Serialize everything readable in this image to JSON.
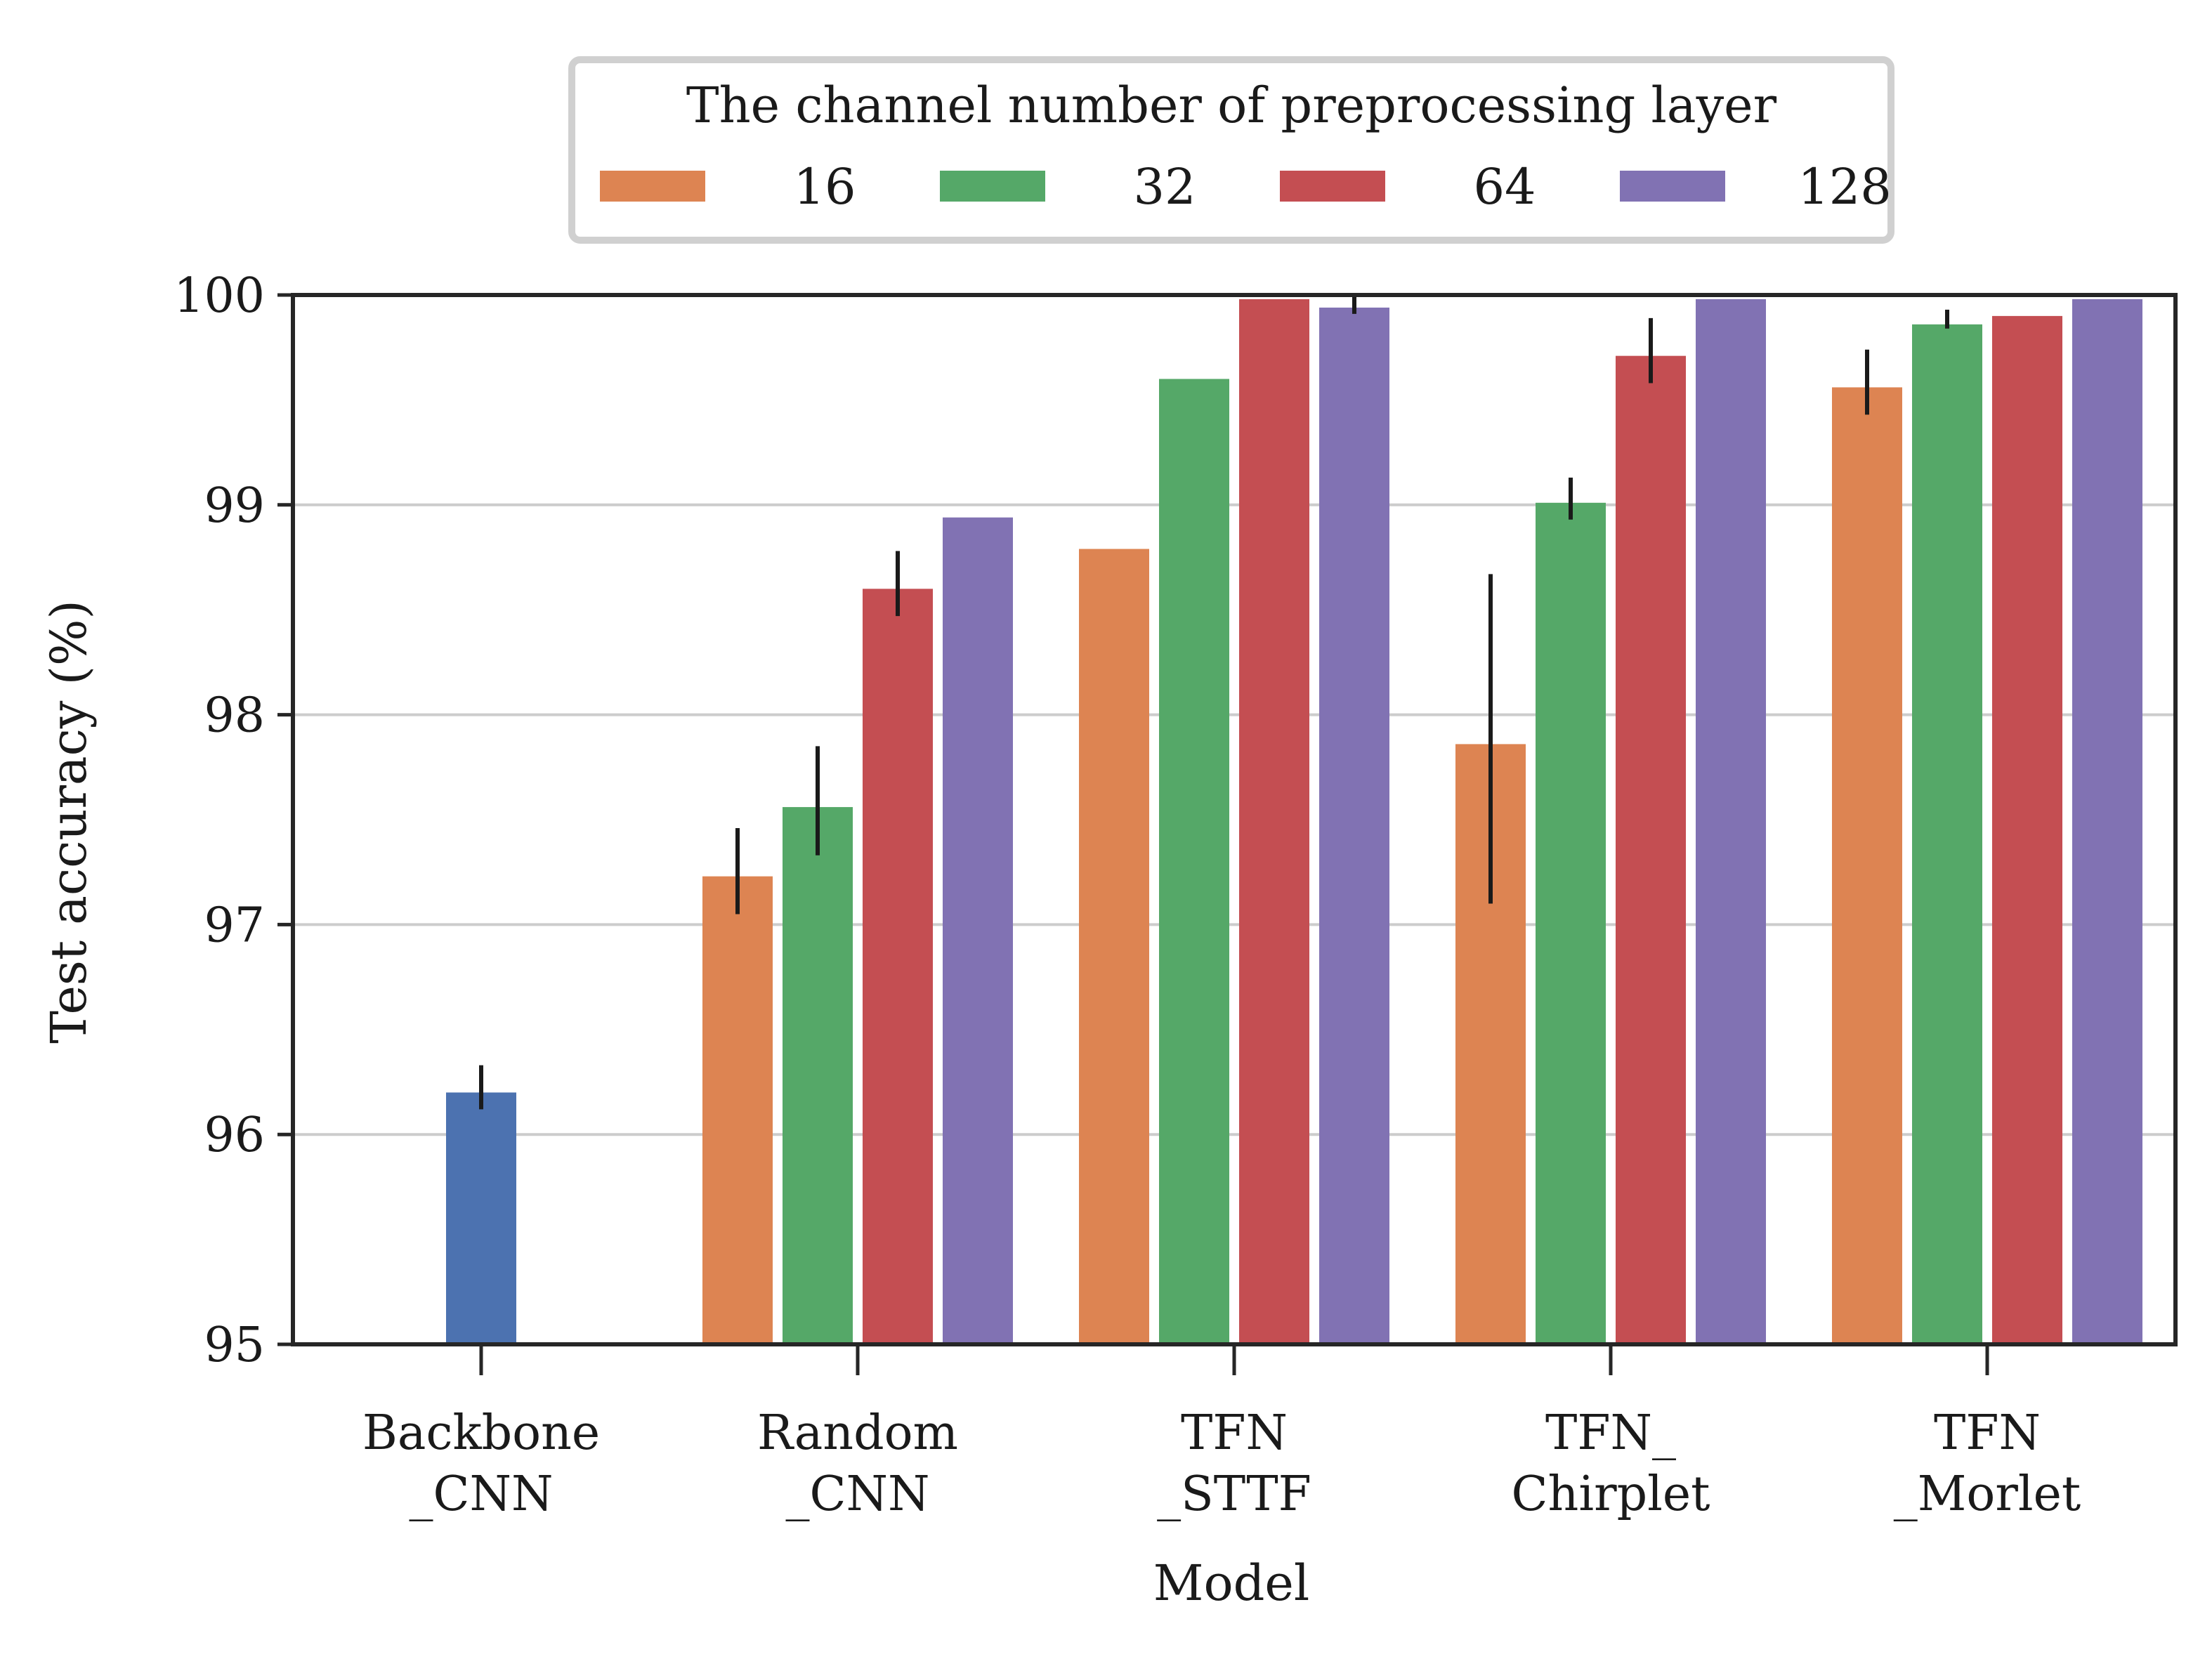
{
  "chart_data": {
    "type": "bar",
    "xlabel": "Model",
    "ylabel": "Test accuracy (%)",
    "ylim": [
      95,
      100
    ],
    "yticks": [
      "95",
      "96",
      "97",
      "98",
      "99",
      "100"
    ],
    "categories": [
      {
        "line1": "Backbone",
        "line2": "_CNN"
      },
      {
        "line1": "Random",
        "line2": "_CNN"
      },
      {
        "line1": "TFN",
        "line2": "_STTF"
      },
      {
        "line1": "TFN_",
        "line2": "Chirplet"
      },
      {
        "line1": "TFN",
        "line2": "_Morlet"
      }
    ],
    "baseline": {
      "category": "Backbone _CNN",
      "value": 96.2,
      "err": [
        96.12,
        96.33
      ],
      "color": "#4c72b0"
    },
    "legend": {
      "title": "The channel number of preprocessing layer",
      "position": "top-center, above plot"
    },
    "series": [
      {
        "name": "16",
        "color": "#dd8452",
        "values": [
          null,
          97.23,
          98.79,
          97.86,
          99.56
        ],
        "err": [
          null,
          [
            97.05,
            97.46
          ],
          null,
          [
            97.1,
            98.67
          ],
          [
            99.43,
            99.74
          ]
        ]
      },
      {
        "name": "32",
        "color": "#55a868",
        "values": [
          null,
          97.56,
          99.6,
          99.01,
          99.86
        ],
        "err": [
          null,
          [
            97.33,
            97.85
          ],
          null,
          [
            98.93,
            99.13
          ],
          [
            99.84,
            99.93
          ]
        ]
      },
      {
        "name": "64",
        "color": "#c44e52",
        "values": [
          null,
          98.6,
          99.98,
          99.71,
          99.9
        ],
        "err": [
          null,
          [
            98.47,
            98.78
          ],
          null,
          [
            99.58,
            99.89
          ],
          null
        ]
      },
      {
        "name": "128",
        "color": "#8172b3",
        "values": [
          null,
          98.94,
          99.94,
          99.98,
          99.98
        ],
        "err": [
          null,
          null,
          [
            99.91,
            100.0
          ],
          null,
          null
        ]
      }
    ]
  }
}
